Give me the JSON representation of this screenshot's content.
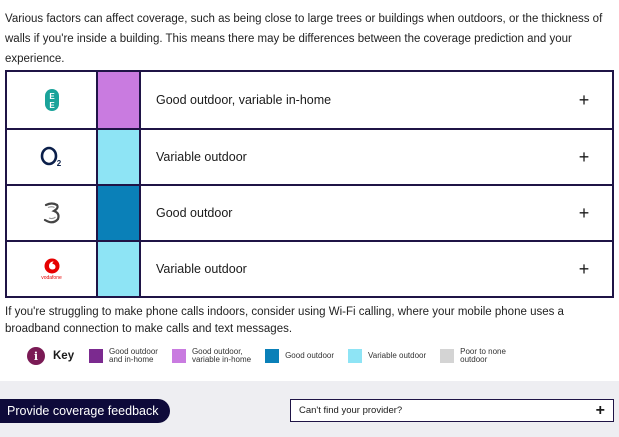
{
  "intro_text": "Various factors can affect coverage, such as being close to large trees or buildings when outdoors, or the thickness of walls if you're inside a building. This means there may be differences between the coverage prediction and your experience.",
  "providers": [
    {
      "logo": "ee-logo",
      "swatch_color": "#c97be0",
      "label": "Good outdoor, variable in-home",
      "expand": "+"
    },
    {
      "logo": "o2-logo",
      "swatch_color": "#8ee4f5",
      "label": "Variable outdoor",
      "expand": "+"
    },
    {
      "logo": "three-logo",
      "swatch_color": "#0a80b8",
      "label": "Good outdoor",
      "expand": "+"
    },
    {
      "logo": "vodafone-logo",
      "swatch_color": "#8ee4f5",
      "label": "Variable outdoor",
      "expand": "+",
      "logo_text": "vodafone"
    }
  ],
  "calling_text": "If you're struggling to make phone calls indoors, consider using Wi-Fi calling, where your mobile phone uses a broadband connection to make calls and text messages.",
  "key": {
    "icon": "i",
    "title": "Key",
    "items": [
      {
        "color": "#7b2a8f",
        "line1": "Good outdoor",
        "line2": "and in-home"
      },
      {
        "color": "#c97be0",
        "line1": "Good outdoor,",
        "line2": "variable in-home"
      },
      {
        "color": "#0a80b8",
        "line1": "Good outdoor",
        "line2": ""
      },
      {
        "color": "#8ee4f5",
        "line1": "Variable outdoor",
        "line2": ""
      },
      {
        "color": "#d4d4d4",
        "line1": "Poor to none",
        "line2": "outdoor"
      }
    ]
  },
  "footer": {
    "feedback_label": "Provide coverage feedback",
    "provider_label": "Can't find your provider?",
    "provider_plus": "+"
  }
}
